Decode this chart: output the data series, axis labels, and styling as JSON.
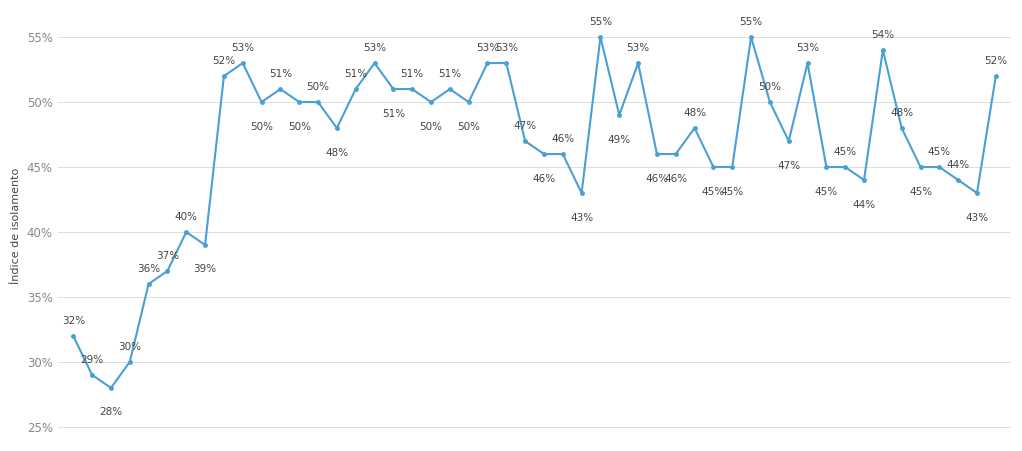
{
  "values": [
    32,
    29,
    28,
    30,
    36,
    37,
    40,
    39,
    52,
    53,
    50,
    51,
    50,
    50,
    48,
    51,
    53,
    51,
    51,
    50,
    51,
    50,
    53,
    53,
    47,
    46,
    46,
    43,
    55,
    49,
    53,
    46,
    46,
    48,
    45,
    45,
    55,
    50,
    47,
    53,
    45,
    45,
    44,
    54,
    48,
    45,
    45,
    44,
    43,
    52
  ],
  "line_color": "#4a9fd4",
  "ylabel": "Índice de isolamento",
  "ylim": [
    24,
    57
  ],
  "yticks": [
    25,
    30,
    35,
    40,
    45,
    50,
    55
  ],
  "background_color": "#ffffff",
  "grid_color": "#dddddd",
  "label_fontsize": 7.5,
  "label_color": "#444444",
  "ylabel_fontsize": 8,
  "tick_fontsize": 8.5,
  "tick_color": "#888888"
}
